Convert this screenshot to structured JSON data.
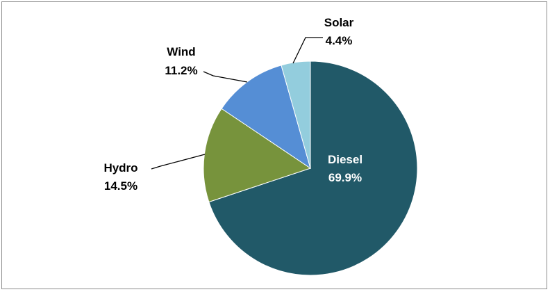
{
  "chart_data": {
    "type": "pie",
    "title": "",
    "start_angle_deg": 0,
    "direction": "clockwise",
    "slices": [
      {
        "label": "Diesel",
        "value": 69.9,
        "value_label": "69.9%",
        "color": "#215968",
        "label_position": "inside"
      },
      {
        "label": "Hydro",
        "value": 14.5,
        "value_label": "14.5%",
        "color": "#77933C",
        "label_position": "outside"
      },
      {
        "label": "Wind",
        "value": 11.2,
        "value_label": "11.2%",
        "color": "#558ED5",
        "label_position": "outside"
      },
      {
        "label": "Solar",
        "value": 4.4,
        "value_label": "4.4%",
        "color": "#93CDDD",
        "label_position": "outside"
      }
    ],
    "legend": "none"
  }
}
